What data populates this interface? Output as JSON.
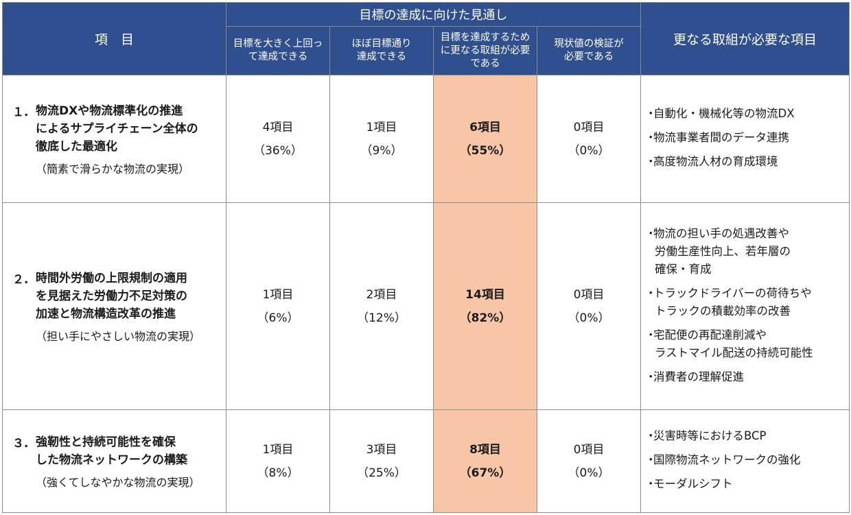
{
  "header": {
    "item_col": "項　目",
    "group_label": "目標の達成に向けた見通し",
    "sub_cols": [
      [
        "目標を大きく上回っ",
        "て達成できる"
      ],
      [
        "ほぼ目標通り",
        "達成できる"
      ],
      [
        "目標を達成するため",
        "に更なる取組が必要",
        "である"
      ],
      [
        "現状値の検証が",
        "必要である"
      ]
    ],
    "need_col": "更なる取組が必要な項目"
  },
  "rows": [
    {
      "num": "１.",
      "title_lines": [
        "物流DXや物流標準化の推進",
        "によるサプライチェーン全体の",
        "徹底した最適化"
      ],
      "subtitle": "（簡素で滑らかな物流の実現）",
      "values": [
        {
          "count": "4項目",
          "pct": "（36%）"
        },
        {
          "count": "1項目",
          "pct": "（9%）"
        },
        {
          "count": "6項目",
          "pct": "（55%）"
        },
        {
          "count": "0項目",
          "pct": "（0%）"
        }
      ],
      "needs": [
        [
          "自動化・機械化等の物流DX"
        ],
        [
          "物流事業者間のデータ連携"
        ],
        [
          "高度物流人材の育成環境"
        ]
      ]
    },
    {
      "num": "２.",
      "title_lines": [
        "時間外労働の上限規制の適用",
        "を見据えた労働力不足対策の",
        "加速と物流構造改革の推進"
      ],
      "subtitle": "（担い手にやさしい物流の実現）",
      "values": [
        {
          "count": "1項目",
          "pct": "（6%）"
        },
        {
          "count": "2項目",
          "pct": "（12%）"
        },
        {
          "count": "14項目",
          "pct": "（82%）"
        },
        {
          "count": "0項目",
          "pct": "（0%）"
        }
      ],
      "needs": [
        [
          "物流の担い手の処遇改善や",
          "労働生産性向上、若年層の",
          "確保・育成"
        ],
        [
          "トラックドライバーの荷待ちや",
          "トラックの積載効率の改善"
        ],
        [
          "宅配便の再配達削減や",
          "ラストマイル配送の持続可能性"
        ],
        [
          "消費者の理解促進"
        ]
      ]
    },
    {
      "num": "３.",
      "title_lines": [
        "強靭性と持続可能性を確保",
        "した物流ネットワークの構築"
      ],
      "subtitle": "（強くてしなやかな物流の実現）",
      "values": [
        {
          "count": "1項目",
          "pct": "（8%）"
        },
        {
          "count": "3項目",
          "pct": "（25%）"
        },
        {
          "count": "8項目",
          "pct": "（67%）"
        },
        {
          "count": "0項目",
          "pct": "（0%）"
        }
      ],
      "needs": [
        [
          "災害時等におけるBCP"
        ],
        [
          "国際物流ネットワークの強化"
        ],
        [
          "モーダルシフト"
        ]
      ]
    }
  ],
  "bullet": "・",
  "colors": {
    "header_bg": "#2f4f8f",
    "highlight_bg": "#f6c6a6",
    "border": "#8c8c8c"
  }
}
